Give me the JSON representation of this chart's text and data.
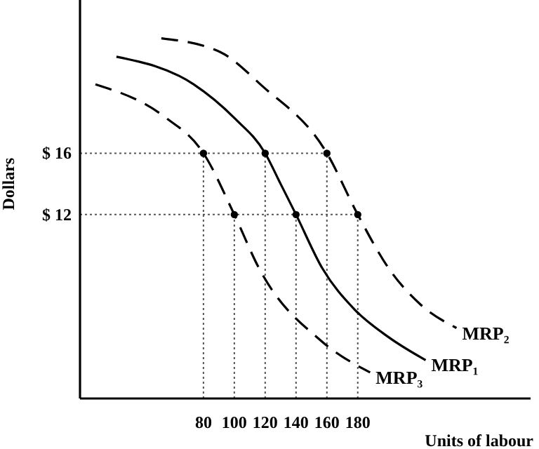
{
  "chart_data": {
    "type": "line",
    "xlabel": "Units of labour",
    "ylabel": "Dollars",
    "xlim": [
      0,
      292
    ],
    "ylim": [
      0,
      26
    ],
    "xticks": [
      80,
      100,
      120,
      140,
      160,
      180
    ],
    "yticks": [
      {
        "value": 12,
        "label": "$ 12"
      },
      {
        "value": 16,
        "label": "$ 16"
      }
    ],
    "marker": "none",
    "series": [
      {
        "name": "MRP₂",
        "color": "#000000",
        "line_style": "dashed",
        "x": [
          52.7,
          90.9,
          118,
          160,
          180,
          200,
          221,
          244
        ],
        "values": [
          23.5,
          22.6,
          20.4,
          16,
          12,
          8.5,
          6.1,
          4.6
        ]
      },
      {
        "name": "MRP₁",
        "color": "#000000",
        "line_style": "solid",
        "x": [
          23.6,
          73.6,
          100,
          120,
          130,
          140,
          157,
          178,
          200,
          224
        ],
        "values": [
          22.3,
          20.5,
          18.3,
          16,
          14,
          12,
          8.5,
          5.8,
          4,
          2.5
        ]
      },
      {
        "name": "MRP₃",
        "color": "#000000",
        "line_style": "dashed",
        "x": [
          10,
          54.5,
          80,
          100,
          116,
          157,
          188
        ],
        "values": [
          20.5,
          18.4,
          16,
          12,
          8.5,
          3.7,
          1.7
        ]
      },
      {
        "type": "scatter",
        "marker": "circle",
        "color": "#000000",
        "x": [
          80,
          120,
          160,
          100,
          140,
          180
        ],
        "values": [
          16,
          16,
          16,
          12,
          12,
          12
        ]
      }
    ],
    "ref_lines": [
      {
        "axis": "y",
        "value": 16,
        "line_style": "dotted",
        "color": "#555555"
      },
      {
        "axis": "y",
        "value": 12,
        "line_style": "dotted",
        "color": "#555555"
      },
      {
        "axis": "x",
        "value": 80,
        "line_style": "dotted",
        "color": "#555555"
      },
      {
        "axis": "x",
        "value": 100,
        "line_style": "dotted",
        "color": "#555555"
      },
      {
        "axis": "x",
        "value": 120,
        "line_style": "dotted",
        "color": "#555555"
      },
      {
        "axis": "x",
        "value": 140,
        "line_style": "dotted",
        "color": "#555555"
      },
      {
        "axis": "x",
        "value": 160,
        "line_style": "dotted",
        "color": "#555555"
      },
      {
        "axis": "x",
        "value": 180,
        "line_style": "dotted",
        "color": "#555555"
      }
    ]
  }
}
